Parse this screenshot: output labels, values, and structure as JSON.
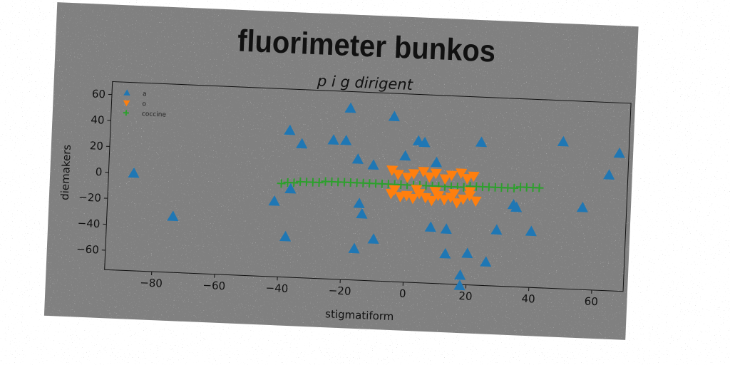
{
  "chart_data": {
    "type": "scatter",
    "title": "fluorimeter bunkos",
    "subtitle": "p i g dirigent",
    "xlabel": "stigmatiform",
    "ylabel": "diemakers",
    "xlim": [
      -95,
      70
    ],
    "ylim": [
      -75,
      70
    ],
    "xticks": [
      "−80",
      "−60",
      "−40",
      "−20",
      "0",
      "20",
      "40",
      "60"
    ],
    "yticks": [
      "60",
      "40",
      "20",
      "0",
      "−20",
      "−40",
      "−60"
    ],
    "xtick_values": [
      -80,
      -60,
      -40,
      -20,
      0,
      20,
      40,
      60
    ],
    "ytick_values": [
      60,
      40,
      20,
      0,
      -20,
      -40,
      -60
    ],
    "legend_position": "top-left",
    "grid": false,
    "series": [
      {
        "name": "a",
        "marker": "triangle-up",
        "color": "#1f77b4",
        "points": [
          [
            -87,
            0
          ],
          [
            -74,
            -32
          ],
          [
            -38,
            38
          ],
          [
            -34,
            28
          ],
          [
            -37,
            -7
          ],
          [
            -42,
            -17
          ],
          [
            -38,
            -44
          ],
          [
            -19,
            57
          ],
          [
            -24,
            32
          ],
          [
            -20,
            32
          ],
          [
            -16,
            18
          ],
          [
            -11,
            14
          ],
          [
            -15,
            -16
          ],
          [
            -14,
            -24
          ],
          [
            -16,
            -51
          ],
          [
            -10,
            -43
          ],
          [
            -5,
            52
          ],
          [
            -1,
            22
          ],
          [
            3,
            34
          ],
          [
            5,
            33
          ],
          [
            9,
            18
          ],
          [
            8,
            -32
          ],
          [
            13,
            -33
          ],
          [
            13,
            -52
          ],
          [
            20,
            -51
          ],
          [
            18,
            -68
          ],
          [
            18,
            -76
          ],
          [
            23,
            35
          ],
          [
            26,
            -57
          ],
          [
            29,
            -32
          ],
          [
            34,
            -12
          ],
          [
            35,
            -14
          ],
          [
            40,
            -32
          ],
          [
            49,
            38
          ],
          [
            56,
            -12
          ],
          [
            64,
            14
          ],
          [
            67,
            31
          ]
        ]
      },
      {
        "name": "o",
        "marker": "triangle-down",
        "color": "#ff7f0e",
        "points": [
          [
            -5,
            11
          ],
          [
            -3,
            8
          ],
          [
            0,
            6
          ],
          [
            2,
            9
          ],
          [
            5,
            11
          ],
          [
            7,
            7
          ],
          [
            9,
            10
          ],
          [
            12,
            6
          ],
          [
            14,
            9
          ],
          [
            17,
            11
          ],
          [
            19,
            7
          ],
          [
            21,
            9
          ],
          [
            -5,
            -7
          ],
          [
            -2,
            -9
          ],
          [
            0,
            -8
          ],
          [
            2,
            -10
          ],
          [
            4,
            -6
          ],
          [
            6,
            -9
          ],
          [
            8,
            -11
          ],
          [
            10,
            -7
          ],
          [
            12,
            -10
          ],
          [
            14,
            -8
          ],
          [
            16,
            -12
          ],
          [
            18,
            -9
          ],
          [
            20,
            -6
          ],
          [
            22,
            -10
          ],
          [
            -4,
            -4
          ],
          [
            3,
            -3
          ],
          [
            9,
            -4
          ],
          [
            15,
            -5
          ],
          [
            20,
            -3
          ]
        ]
      },
      {
        "name": "coccine",
        "marker": "plus",
        "color": "#2ca02c",
        "points": [
          [
            -40,
            -3
          ],
          [
            -38,
            -2
          ],
          [
            -36,
            -2
          ],
          [
            -34,
            -1
          ],
          [
            -32,
            -1
          ],
          [
            -30,
            -1
          ],
          [
            -28,
            -1
          ],
          [
            -26,
            0
          ],
          [
            -24,
            0
          ],
          [
            -22,
            0
          ],
          [
            -20,
            0
          ],
          [
            -18,
            0
          ],
          [
            -16,
            0
          ],
          [
            -14,
            0
          ],
          [
            -12,
            0
          ],
          [
            -10,
            0
          ],
          [
            -8,
            0
          ],
          [
            -6,
            0
          ],
          [
            -4,
            0
          ],
          [
            -2,
            0
          ],
          [
            0,
            0
          ],
          [
            2,
            0
          ],
          [
            4,
            0
          ],
          [
            6,
            0
          ],
          [
            8,
            0
          ],
          [
            10,
            0
          ],
          [
            12,
            0
          ],
          [
            14,
            0
          ],
          [
            16,
            0
          ],
          [
            18,
            0
          ],
          [
            20,
            1
          ],
          [
            22,
            1
          ],
          [
            24,
            1
          ],
          [
            26,
            1
          ],
          [
            28,
            1
          ],
          [
            30,
            1
          ],
          [
            32,
            1
          ],
          [
            34,
            1
          ],
          [
            36,
            2
          ],
          [
            38,
            2
          ],
          [
            40,
            2
          ],
          [
            42,
            2
          ]
        ]
      }
    ]
  },
  "colors": {
    "panel_background": "#808080",
    "page_background": "#ffffff"
  }
}
